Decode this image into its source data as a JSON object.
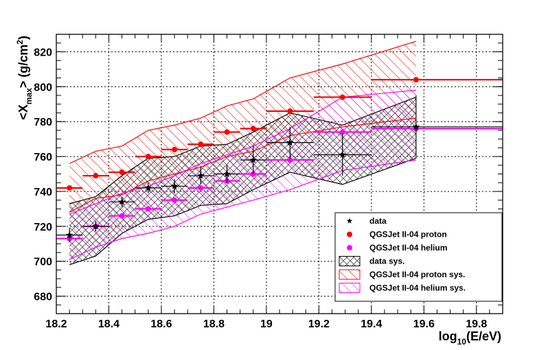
{
  "chart_data": {
    "type": "scatter",
    "xlabel": "log10(E/eV)",
    "xlabel_parts": {
      "prefix": "log",
      "sub": "10",
      "suffix": "(E/eV)"
    },
    "ylabel": "<Xmax> (g/cm2)",
    "ylabel_parts": {
      "prefix": "<X",
      "sub": "max",
      "mid": "> (g/cm",
      "sup": "2",
      "suffix": ")"
    },
    "xlim": [
      18.2,
      19.9
    ],
    "ylim": [
      670,
      830
    ],
    "xticks": [
      18.2,
      18.4,
      18.6,
      18.8,
      19.0,
      19.2,
      19.4,
      19.6,
      19.8
    ],
    "xtick_labels": [
      "18.2",
      "18.4",
      "18.6",
      "18.8",
      "19",
      "19.2",
      "19.4",
      "19.6",
      "19.8"
    ],
    "yticks": [
      680,
      700,
      720,
      740,
      760,
      780,
      800,
      820
    ],
    "ytick_labels": [
      "680",
      "700",
      "720",
      "740",
      "760",
      "780",
      "800",
      "820"
    ],
    "grid": true,
    "legend_position": "bottom-right",
    "series": [
      {
        "name": "data",
        "kind": "points",
        "marker": "star",
        "color": "#000000",
        "points": [
          {
            "x": 18.25,
            "y": 715,
            "xerr": [
              0.05,
              0.05
            ],
            "yerr": 4
          },
          {
            "x": 18.35,
            "y": 720,
            "xerr": [
              0.05,
              0.05
            ],
            "yerr": 3
          },
          {
            "x": 18.45,
            "y": 734,
            "xerr": [
              0.05,
              0.05
            ],
            "yerr": 3
          },
          {
            "x": 18.55,
            "y": 742,
            "xerr": [
              0.05,
              0.05
            ],
            "yerr": 3
          },
          {
            "x": 18.65,
            "y": 743,
            "xerr": [
              0.05,
              0.05
            ],
            "yerr": 4
          },
          {
            "x": 18.75,
            "y": 749,
            "xerr": [
              0.05,
              0.05
            ],
            "yerr": 5
          },
          {
            "x": 18.85,
            "y": 750,
            "xerr": [
              0.05,
              0.05
            ],
            "yerr": 5
          },
          {
            "x": 18.95,
            "y": 758,
            "xerr": [
              0.05,
              0.05
            ],
            "yerr": 8
          },
          {
            "x": 19.09,
            "y": 768,
            "xerr": [
              0.09,
              0.09
            ],
            "yerr": 9
          },
          {
            "x": 19.29,
            "y": 761,
            "xerr": [
              0.11,
              0.11
            ],
            "yerr": 12
          },
          {
            "x": 19.57,
            "y": 777,
            "xerr": [
              0.17,
              0.33
            ],
            "yerr": 18
          }
        ]
      },
      {
        "name": "QGSJet II-04 proton",
        "kind": "points",
        "marker": "circle",
        "color": "#ff0000",
        "points": [
          {
            "x": 18.25,
            "y": 742,
            "xerr": [
              0.05,
              0.05
            ],
            "yerr": 0
          },
          {
            "x": 18.35,
            "y": 749,
            "xerr": [
              0.05,
              0.05
            ],
            "yerr": 0
          },
          {
            "x": 18.45,
            "y": 751,
            "xerr": [
              0.05,
              0.05
            ],
            "yerr": 0
          },
          {
            "x": 18.55,
            "y": 760,
            "xerr": [
              0.05,
              0.05
            ],
            "yerr": 0
          },
          {
            "x": 18.65,
            "y": 764,
            "xerr": [
              0.05,
              0.05
            ],
            "yerr": 0
          },
          {
            "x": 18.75,
            "y": 767,
            "xerr": [
              0.05,
              0.05
            ],
            "yerr": 0
          },
          {
            "x": 18.85,
            "y": 774,
            "xerr": [
              0.05,
              0.05
            ],
            "yerr": 0
          },
          {
            "x": 18.95,
            "y": 776,
            "xerr": [
              0.05,
              0.05
            ],
            "yerr": 0
          },
          {
            "x": 19.09,
            "y": 786,
            "xerr": [
              0.09,
              0.09
            ],
            "yerr": 0
          },
          {
            "x": 19.29,
            "y": 794,
            "xerr": [
              0.11,
              0.11
            ],
            "yerr": 0
          },
          {
            "x": 19.57,
            "y": 804,
            "xerr": [
              0.17,
              0.33
            ],
            "yerr": 0
          }
        ]
      },
      {
        "name": "QGSJet II-04 helium",
        "kind": "points",
        "marker": "circle",
        "color": "#ff00ff",
        "points": [
          {
            "x": 18.25,
            "y": 713,
            "xerr": [
              0.05,
              0.05
            ],
            "yerr": 0
          },
          {
            "x": 18.35,
            "y": 720,
            "xerr": [
              0.05,
              0.05
            ],
            "yerr": 0
          },
          {
            "x": 18.45,
            "y": 726,
            "xerr": [
              0.05,
              0.05
            ],
            "yerr": 0
          },
          {
            "x": 18.55,
            "y": 730,
            "xerr": [
              0.05,
              0.05
            ],
            "yerr": 0
          },
          {
            "x": 18.65,
            "y": 735,
            "xerr": [
              0.05,
              0.05
            ],
            "yerr": 0
          },
          {
            "x": 18.75,
            "y": 742,
            "xerr": [
              0.05,
              0.05
            ],
            "yerr": 0
          },
          {
            "x": 18.85,
            "y": 746,
            "xerr": [
              0.05,
              0.05
            ],
            "yerr": 0
          },
          {
            "x": 18.95,
            "y": 750,
            "xerr": [
              0.05,
              0.05
            ],
            "yerr": 0
          },
          {
            "x": 19.09,
            "y": 758,
            "xerr": [
              0.09,
              0.09
            ],
            "yerr": 0
          },
          {
            "x": 19.29,
            "y": 774,
            "xerr": [
              0.11,
              0.11
            ],
            "yerr": 0
          },
          {
            "x": 19.57,
            "y": 776,
            "xerr": [
              0.17,
              0.33
            ],
            "yerr": 0
          }
        ]
      },
      {
        "name": "data sys.",
        "kind": "band",
        "hatch": "crosshatch",
        "color": "#000000",
        "hatch_color": "#555555",
        "x": [
          18.25,
          18.35,
          18.45,
          18.55,
          18.65,
          18.75,
          18.85,
          18.95,
          19.09,
          19.29,
          19.57
        ],
        "lower": [
          698,
          703,
          716,
          724,
          726,
          732,
          733,
          741,
          751,
          744,
          759
        ],
        "upper": [
          733,
          737,
          749,
          759,
          760,
          766,
          767,
          774,
          785,
          778,
          794
        ]
      },
      {
        "name": "QGSJet II-04 proton sys.",
        "kind": "band",
        "hatch": "diagonal",
        "color": "#ff0000",
        "hatch_color": "#ff0000",
        "x": [
          18.25,
          18.35,
          18.45,
          18.55,
          18.65,
          18.75,
          18.85,
          18.95,
          19.09,
          19.29,
          19.57
        ],
        "lower": [
          728,
          736,
          738,
          746,
          750,
          754,
          760,
          763,
          772,
          777,
          782
        ],
        "upper": [
          756,
          763,
          766,
          775,
          778,
          782,
          789,
          793,
          805,
          813,
          826
        ]
      },
      {
        "name": "QGSJet II-04 helium sys.",
        "kind": "band",
        "hatch": "diagonal",
        "color": "#ff00ff",
        "hatch_color": "#ff00ff",
        "x": [
          18.25,
          18.35,
          18.45,
          18.55,
          18.65,
          18.75,
          18.85,
          18.95,
          19.09,
          19.29,
          19.57
        ],
        "lower": [
          701,
          708,
          713,
          716,
          720,
          727,
          731,
          735,
          741,
          752,
          758
        ],
        "upper": [
          727,
          733,
          739,
          743,
          749,
          756,
          761,
          766,
          776,
          794,
          798
        ]
      }
    ],
    "legend": [
      {
        "label": "data",
        "series": "data"
      },
      {
        "label": "QGSJet II-04 proton",
        "series": "QGSJet II-04 proton"
      },
      {
        "label": "QGSJet II-04 helium",
        "series": "QGSJet II-04 helium"
      },
      {
        "label": "data sys.",
        "series": "data sys."
      },
      {
        "label": "QGSJet II-04 proton sys.",
        "series": "QGSJet II-04 proton sys."
      },
      {
        "label": "QGSJet II-04 helium sys.",
        "series": "QGSJet II-04 helium sys."
      }
    ]
  }
}
